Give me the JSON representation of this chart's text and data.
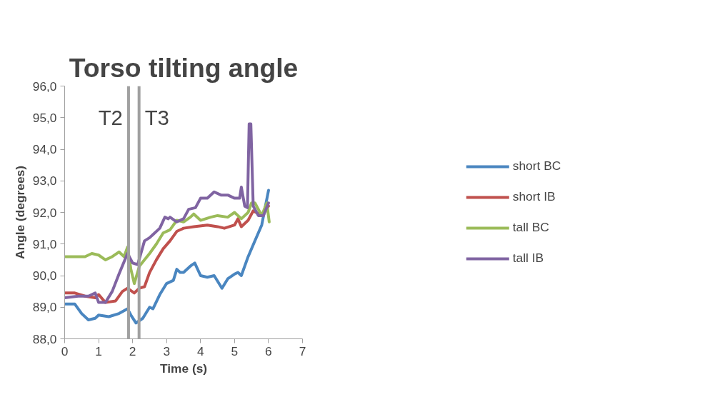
{
  "chart_data": {
    "type": "line",
    "title": "Torso tilting angle",
    "xlabel": "Time (s)",
    "ylabel": "Angle (degrees)",
    "xlim": [
      0,
      7
    ],
    "xticks": [
      0,
      1,
      2,
      3,
      4,
      5,
      6,
      7
    ],
    "ylim": [
      88,
      96
    ],
    "yticks": [
      {
        "value": 88,
        "label": "88,0"
      },
      {
        "value": 89,
        "label": "89,0"
      },
      {
        "value": 90,
        "label": "90,0"
      },
      {
        "value": 91,
        "label": "91,0"
      },
      {
        "value": 92,
        "label": "92,0"
      },
      {
        "value": 93,
        "label": "93,0"
      },
      {
        "value": 94,
        "label": "94,0"
      },
      {
        "value": 95,
        "label": "95,0"
      },
      {
        "value": 96,
        "label": "96,0"
      }
    ],
    "grid": false,
    "legend": "right",
    "marker": "none",
    "line_style": "solid",
    "ref_lines": [
      {
        "axis": "x",
        "value": 1.88,
        "label": "T2",
        "color": "#a0a0a0"
      },
      {
        "axis": "x",
        "value": 2.19,
        "label": "T3",
        "color": "#a0a0a0"
      }
    ],
    "series": [
      {
        "name": "short BC",
        "color": "#4a86c0",
        "x": [
          0,
          0.3,
          0.5,
          0.7,
          0.9,
          1.0,
          1.3,
          1.6,
          1.85,
          1.95,
          2.1,
          2.3,
          2.5,
          2.6,
          2.8,
          3.0,
          3.2,
          3.3,
          3.4,
          3.5,
          3.7,
          3.83,
          4.0,
          4.2,
          4.4,
          4.63,
          4.8,
          5.0,
          5.1,
          5.2,
          5.4,
          5.6,
          5.8,
          6.0
        ],
        "values": [
          89.1,
          89.1,
          88.8,
          88.6,
          88.65,
          88.75,
          88.7,
          88.8,
          88.95,
          88.75,
          88.5,
          88.65,
          89.0,
          88.95,
          89.4,
          89.75,
          89.85,
          90.2,
          90.1,
          90.1,
          90.3,
          90.4,
          90.0,
          89.95,
          90.0,
          89.6,
          89.9,
          90.05,
          90.1,
          90.0,
          90.6,
          91.1,
          91.6,
          92.7
        ]
      },
      {
        "name": "short IB",
        "color": "#c0504d",
        "x": [
          0,
          0.3,
          0.6,
          0.9,
          1.0,
          1.2,
          1.5,
          1.7,
          1.85,
          2.05,
          2.2,
          2.35,
          2.5,
          2.7,
          2.9,
          3.1,
          3.3,
          3.5,
          3.8,
          4.2,
          4.5,
          4.7,
          5.0,
          5.1,
          5.2,
          5.4,
          5.55,
          5.8,
          6.0
        ],
        "values": [
          89.45,
          89.45,
          89.35,
          89.3,
          89.4,
          89.15,
          89.2,
          89.5,
          89.6,
          89.45,
          89.6,
          89.65,
          90.1,
          90.5,
          90.85,
          91.1,
          91.4,
          91.5,
          91.55,
          91.6,
          91.55,
          91.5,
          91.6,
          91.8,
          91.55,
          91.75,
          92.05,
          91.9,
          92.2
        ]
      },
      {
        "name": "tall BC",
        "color": "#9bbb59",
        "x": [
          0,
          0.4,
          0.6,
          0.8,
          1.0,
          1.2,
          1.4,
          1.6,
          1.75,
          1.85,
          1.95,
          2.05,
          2.2,
          2.5,
          2.7,
          2.9,
          3.1,
          3.3,
          3.5,
          3.7,
          3.8,
          4.0,
          4.3,
          4.5,
          4.8,
          5.0,
          5.2,
          5.4,
          5.5,
          5.6,
          5.8,
          5.95,
          6.02
        ],
        "values": [
          90.6,
          90.6,
          90.6,
          90.7,
          90.65,
          90.5,
          90.6,
          90.75,
          90.6,
          90.9,
          90.2,
          89.75,
          90.3,
          90.7,
          91.0,
          91.35,
          91.45,
          91.75,
          91.7,
          91.85,
          91.95,
          91.75,
          91.85,
          91.9,
          91.85,
          92.0,
          91.8,
          92.0,
          92.3,
          92.3,
          91.9,
          92.3,
          91.7
        ]
      },
      {
        "name": "tall IB",
        "color": "#8064a2",
        "x": [
          0,
          0.4,
          0.7,
          0.9,
          1.0,
          1.2,
          1.4,
          1.6,
          1.85,
          2.0,
          2.15,
          2.35,
          2.5,
          2.6,
          2.8,
          2.95,
          3.05,
          3.1,
          3.3,
          3.5,
          3.65,
          3.85,
          4.0,
          4.2,
          4.4,
          4.6,
          4.8,
          5.0,
          5.15,
          5.2,
          5.3,
          5.38,
          5.43,
          5.48,
          5.55,
          5.7,
          5.85,
          6.0
        ],
        "values": [
          89.3,
          89.35,
          89.35,
          89.45,
          89.15,
          89.15,
          89.5,
          90.05,
          90.7,
          90.4,
          90.35,
          91.1,
          91.2,
          91.3,
          91.5,
          91.85,
          91.8,
          91.85,
          91.7,
          91.8,
          92.1,
          92.15,
          92.45,
          92.45,
          92.65,
          92.55,
          92.55,
          92.45,
          92.45,
          92.8,
          92.2,
          92.15,
          94.8,
          94.8,
          92.2,
          91.9,
          91.9,
          92.3
        ]
      }
    ]
  }
}
